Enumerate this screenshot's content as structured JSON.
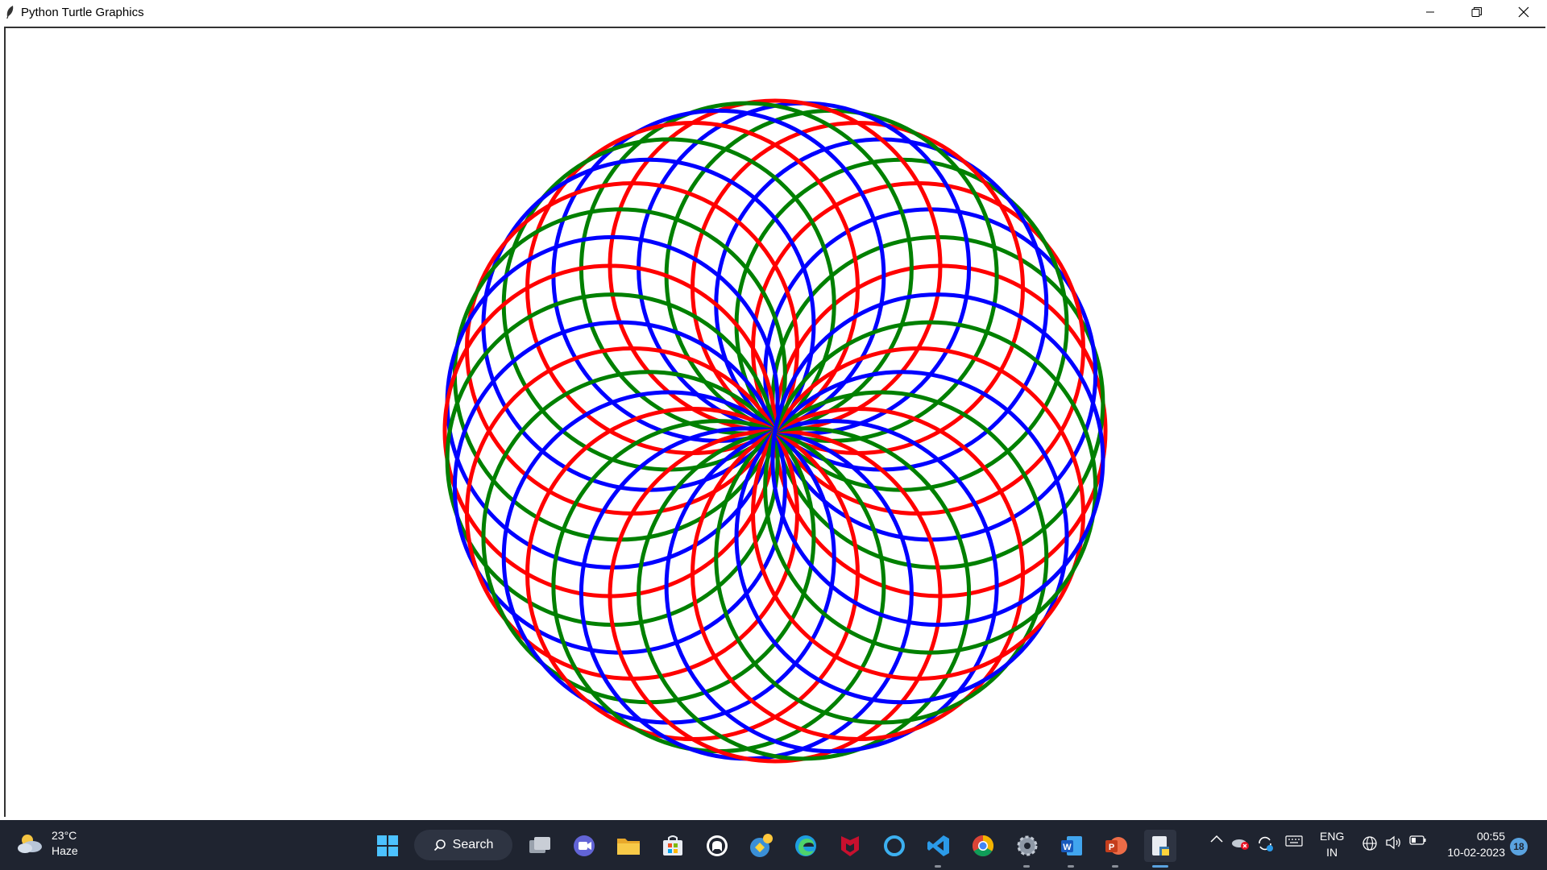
{
  "window": {
    "title": "Python Turtle Graphics"
  },
  "window_controls": {
    "minimize_icon": "minimize-icon",
    "restore_icon": "restore-icon",
    "close_icon": "close-icon"
  },
  "drawing": {
    "description_colors": [
      "#ff0000",
      "#008000",
      "#0000ff"
    ],
    "circle_count": 36,
    "rotation_step_deg": 10
  },
  "taskbar": {
    "weather": {
      "temp": "23°C",
      "condition": "Haze"
    },
    "search_label": "Search",
    "apps": [
      "start-icon",
      "search",
      "task-view-icon",
      "chat-icon",
      "file-explorer-icon",
      "store-icon",
      "github-icon",
      "python-idle-icon",
      "edge-icon",
      "mcafee-icon",
      "cortana-icon",
      "vscode-icon",
      "chrome-icon",
      "settings-icon",
      "word-icon",
      "powerpoint-icon",
      "notepad-python-icon"
    ],
    "language": {
      "line1": "ENG",
      "line2": "IN"
    },
    "clock": {
      "time": "00:55",
      "date": "10-02-2023"
    },
    "notifications": "18"
  }
}
